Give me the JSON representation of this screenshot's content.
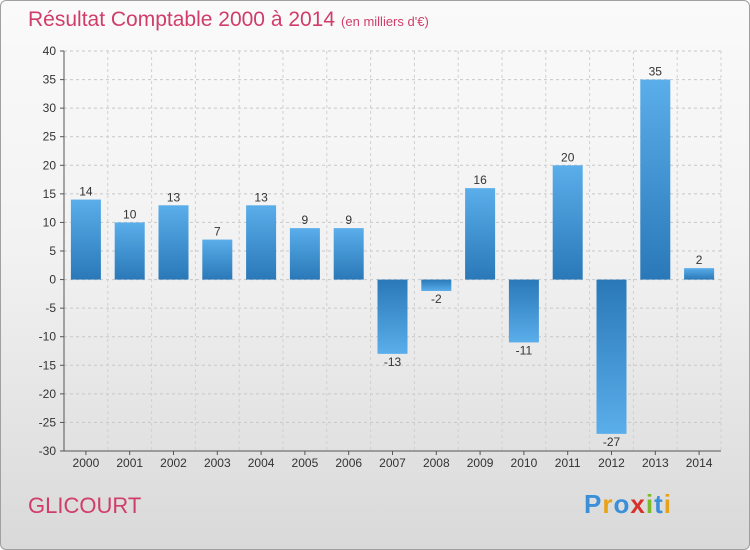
{
  "header": {
    "title": "Résultat Comptable 2000 à 2014",
    "subtitle": "(en milliers d'€)"
  },
  "footer": {
    "location": "GLICOURT",
    "brand": "Proxiti"
  },
  "colors": {
    "title": "#d03d6a",
    "bar_light": "#5aaeea",
    "bar_dark": "#2a78b8",
    "logo_letters": [
      "#3b8fd8",
      "#e8a21a",
      "#3b8fd8",
      "#d8312c",
      "#7cba2a",
      "#3b8fd8",
      "#e8a21a"
    ]
  },
  "chart_data": {
    "type": "bar",
    "title": "Résultat Comptable 2000 à 2014",
    "subtitle": "(en milliers d'€)",
    "categories": [
      "2000",
      "2001",
      "2002",
      "2003",
      "2004",
      "2005",
      "2006",
      "2007",
      "2008",
      "2009",
      "2010",
      "2011",
      "2012",
      "2013",
      "2014"
    ],
    "values": [
      14,
      10,
      13,
      7,
      13,
      9,
      9,
      -13,
      -2,
      16,
      -11,
      20,
      -27,
      35,
      2
    ],
    "ylim": [
      -30,
      40
    ],
    "yticks": [
      40,
      35,
      30,
      25,
      20,
      15,
      10,
      5,
      0,
      -5,
      -10,
      -15,
      -20,
      -25,
      -30
    ],
    "grid": true,
    "xlabel": "",
    "ylabel": ""
  }
}
